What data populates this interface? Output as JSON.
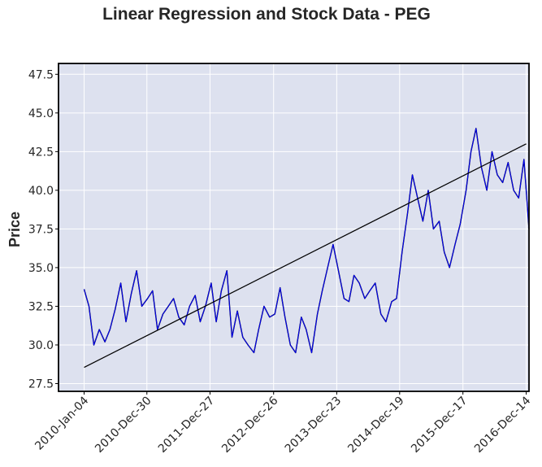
{
  "chart_data": {
    "type": "line",
    "title": "Linear Regression and Stock Data - PEG",
    "xlabel": "",
    "ylabel": "Price",
    "ylim": [
      27.0,
      48.2
    ],
    "xlim": [
      "2009-08-10",
      "2016-12-30"
    ],
    "grid": true,
    "y_ticks": [
      27.5,
      30.0,
      32.5,
      35.0,
      37.5,
      40.0,
      42.5,
      45.0,
      47.5
    ],
    "y_tick_labels": [
      "27.5",
      "30.0",
      "32.5",
      "35.0",
      "37.5",
      "40.0",
      "42.5",
      "45.0",
      "47.5"
    ],
    "x_tick_dates": [
      "2010-01-04",
      "2010-12-30",
      "2011-12-27",
      "2012-12-26",
      "2013-12-23",
      "2014-12-19",
      "2015-12-17",
      "2016-12-14"
    ],
    "x_tick_labels": [
      "2010-Jan-04",
      "2010-Dec-30",
      "2011-Dec-27",
      "2012-Dec-26",
      "2013-Dec-23",
      "2014-Dec-19",
      "2015-Dec-17",
      "2016-Dec-14"
    ],
    "series": [
      {
        "color": "#0000ff",
        "x": [
          "2010-01-04",
          "2010-02-01",
          "2010-03-01",
          "2010-04-01",
          "2010-05-03",
          "2010-06-01",
          "2010-07-01",
          "2010-08-02",
          "2010-09-01",
          "2010-10-01",
          "2010-11-01",
          "2010-12-01",
          "2011-01-03",
          "2011-02-01",
          "2011-03-01",
          "2011-04-01",
          "2011-05-02",
          "2011-06-01",
          "2011-07-01",
          "2011-08-01",
          "2011-09-01",
          "2011-10-03",
          "2011-11-01",
          "2011-12-01",
          "2012-01-03",
          "2012-02-01",
          "2012-03-01",
          "2012-04-02",
          "2012-05-01",
          "2012-06-01",
          "2012-07-02",
          "2012-08-01",
          "2012-09-04",
          "2012-10-01",
          "2012-11-01",
          "2012-12-03",
          "2013-01-02",
          "2013-02-01",
          "2013-03-01",
          "2013-04-01",
          "2013-05-01",
          "2013-06-03",
          "2013-07-01",
          "2013-08-01",
          "2013-09-03",
          "2013-10-01",
          "2013-11-01",
          "2013-12-02",
          "2014-01-02",
          "2014-02-03",
          "2014-03-03",
          "2014-04-01",
          "2014-05-01",
          "2014-06-02",
          "2014-07-01",
          "2014-08-01",
          "2014-09-02",
          "2014-10-01",
          "2014-11-03",
          "2014-12-01",
          "2015-01-02",
          "2015-02-02",
          "2015-03-02",
          "2015-04-01",
          "2015-05-01",
          "2015-06-01",
          "2015-07-01",
          "2015-08-03",
          "2015-09-01",
          "2015-10-01",
          "2015-11-02",
          "2015-12-01",
          "2016-01-04",
          "2016-02-01",
          "2016-03-01",
          "2016-04-01",
          "2016-05-02",
          "2016-06-01",
          "2016-07-01",
          "2016-08-01",
          "2016-09-01",
          "2016-10-03",
          "2016-11-01",
          "2016-12-01",
          "2016-12-30"
        ],
        "values": [
          33.6,
          32.5,
          30.0,
          31.0,
          30.2,
          31.0,
          32.3,
          34.0,
          31.5,
          33.3,
          34.8,
          32.5,
          33.0,
          33.5,
          31.0,
          32.0,
          32.5,
          33.0,
          31.8,
          31.3,
          32.5,
          33.2,
          31.5,
          32.5,
          34.0,
          31.5,
          33.5,
          34.8,
          30.5,
          32.2,
          30.5,
          30.0,
          29.5,
          31.0,
          32.5,
          31.8,
          32.0,
          33.7,
          31.8,
          30.0,
          29.5,
          31.8,
          31.0,
          29.5,
          32.0,
          33.5,
          35.0,
          36.5,
          34.8,
          33.0,
          32.8,
          34.5,
          34.0,
          33.0,
          33.5,
          34.0,
          32.0,
          31.5,
          32.8,
          33.0,
          36.0,
          38.5,
          41.0,
          39.5,
          38.0,
          40.0,
          37.5,
          38.0,
          36.0,
          35.0,
          36.5,
          37.8,
          40.0,
          42.5,
          44.0,
          41.5,
          40.0,
          42.5,
          41.0,
          40.5,
          41.8,
          40.0,
          39.5,
          42.0,
          37.5
        ]
      },
      {
        "name": "",
        "color": "#000000",
        "x": [
          "2010-01-04",
          "2016-12-14"
        ],
        "values": [
          28.55,
          43.0
        ]
      }
    ]
  }
}
